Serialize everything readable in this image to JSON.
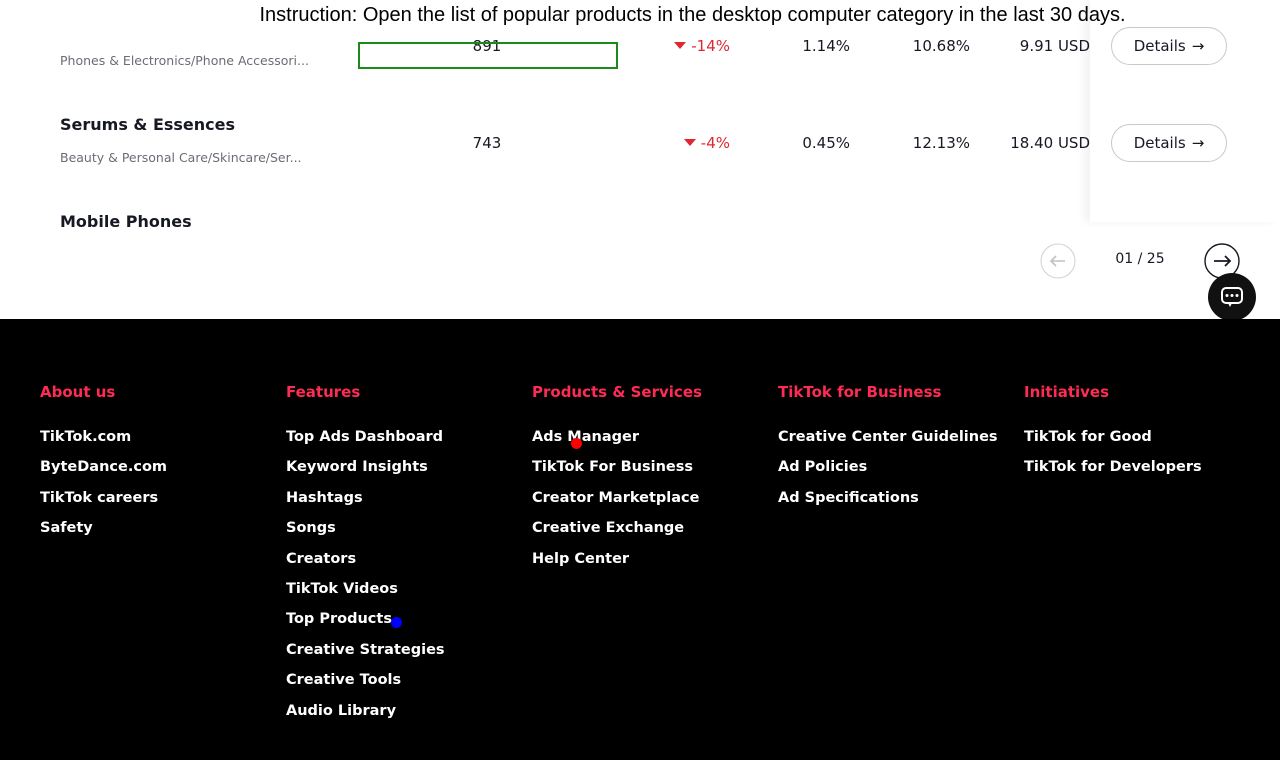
{
  "instruction": "Instruction: Open the list of popular products in the desktop computer category in the last 30 days.",
  "table": {
    "rows": [
      {
        "category": "Phones & Electronics/Phone Accessori...",
        "posts": "891",
        "change": "-14%",
        "ctr": "1.14%",
        "cvr": "10.68%",
        "price": "9.91 USD",
        "action": "Details"
      },
      {
        "name": "Serums & Essences",
        "category": "Beauty & Personal Care/Skincare/Ser...",
        "posts": "743",
        "change": "-4%",
        "ctr": "0.45%",
        "cvr": "12.13%",
        "price": "18.40 USD",
        "action": "Details"
      },
      {
        "name": "Mobile Phones"
      }
    ]
  },
  "pagination": {
    "page": "01 / 25"
  },
  "footer": {
    "columns": [
      {
        "heading": "About us",
        "links": [
          "TikTok.com",
          "ByteDance.com",
          "TikTok careers",
          "Safety"
        ]
      },
      {
        "heading": "Features",
        "links": [
          "Top Ads Dashboard",
          "Keyword Insights",
          "Hashtags",
          "Songs",
          "Creators",
          "TikTok Videos",
          "Top Products",
          "Creative Strategies",
          "Creative Tools",
          "Audio Library"
        ]
      },
      {
        "heading": "Products & Services",
        "links": [
          "Ads Manager",
          "TikTok For Business",
          "Creator Marketplace",
          "Creative Exchange",
          "Help Center"
        ]
      },
      {
        "heading": "TikTok for Business",
        "links": [
          "Creative Center Guidelines",
          "Ad Policies",
          "Ad Specifications"
        ]
      },
      {
        "heading": "Initiatives",
        "links": [
          "TikTok for Good",
          "TikTok for Developers"
        ]
      }
    ]
  }
}
